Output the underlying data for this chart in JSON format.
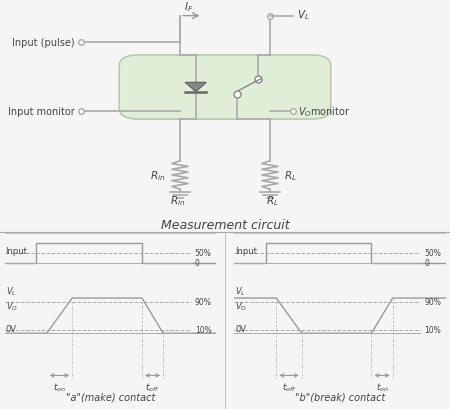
{
  "bg_color": "#f5f5f5",
  "green_fill": "#e0eed8",
  "green_edge": "#b8c8b0",
  "line_color": "#aaaaaa",
  "dark_line": "#999999",
  "text_color": "#444444",
  "title": "Measurement circuit",
  "left_title": "\"a\"(make) contact",
  "right_title": "\"b\"(break) contact"
}
